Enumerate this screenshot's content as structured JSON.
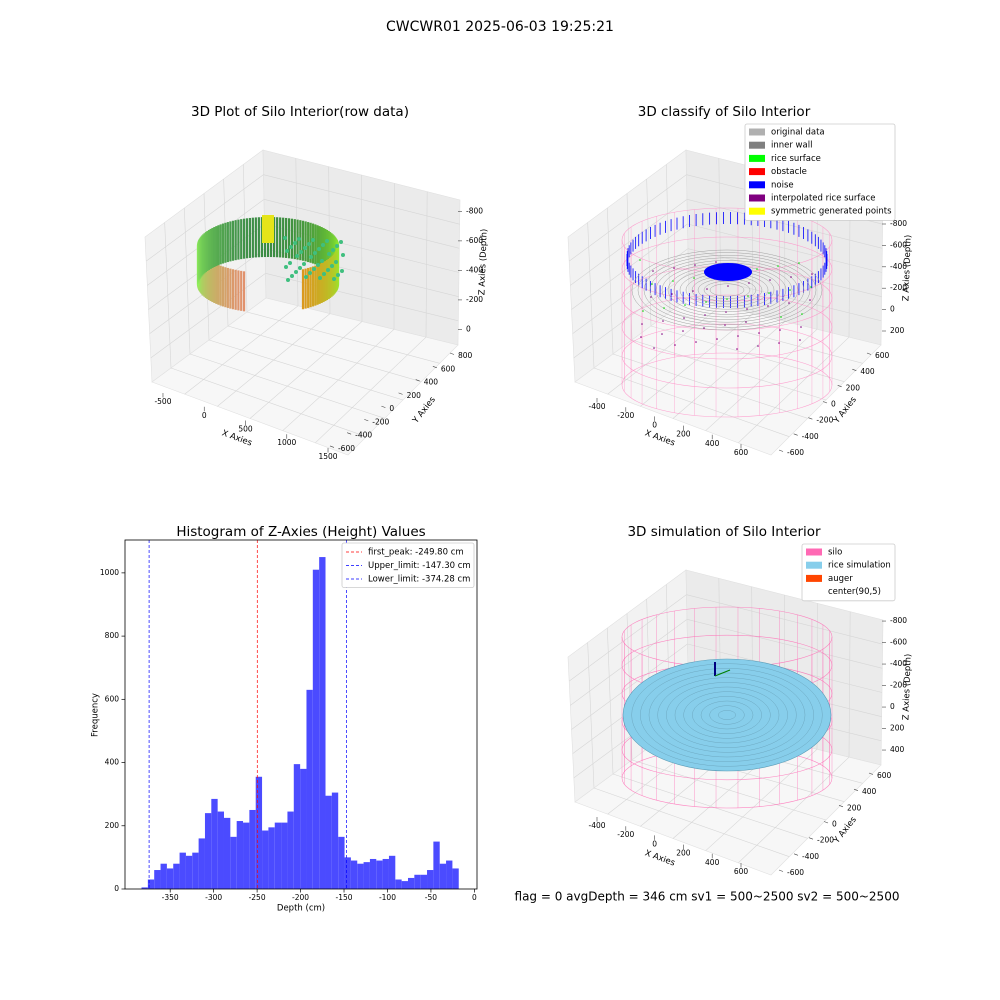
{
  "title": "CWCWR01 2025-06-03 19:25:21",
  "footer": "flag = 0     avgDepth = 346 cm  sv1 = 500~2500  sv2 = 500~2500",
  "chart_data": [
    {
      "type": "scatter3d",
      "title": "3D Plot of Silo Interior(row data)",
      "xlabel": "X Axies",
      "ylabel": "Y Axies",
      "zlabel": "Z Axies (Depth)",
      "xlim": [
        -650,
        1650
      ],
      "ylim": [
        -700,
        850
      ],
      "zlim": [
        -900,
        50
      ],
      "xticks": [
        -500,
        0,
        500,
        1000,
        1500
      ],
      "yticks": [
        -600,
        -400,
        -200,
        0,
        200,
        400,
        600,
        800
      ],
      "zticks": [
        0,
        -200,
        -400,
        -600,
        -800
      ]
    },
    {
      "type": "scatter3d",
      "title": "3D classify of Silo Interior",
      "xlabel": "X Axies",
      "ylabel": "Y Axies",
      "zlabel": "Z Axies (Depth)",
      "xlim": [
        -550,
        700
      ],
      "ylim": [
        -700,
        700
      ],
      "zlim": [
        -900,
        300
      ],
      "xticks": [
        -400,
        -200,
        0,
        200,
        400,
        600
      ],
      "yticks": [
        -600,
        -400,
        -200,
        0,
        200,
        400,
        600
      ],
      "zticks": [
        200,
        0,
        -200,
        -400,
        -600,
        -800
      ],
      "legend": [
        {
          "name": "original data",
          "color": "#b0b0b0"
        },
        {
          "name": "inner wall",
          "color": "#808080"
        },
        {
          "name": "rice surface",
          "color": "#00ff00"
        },
        {
          "name": "obstacle",
          "color": "#ff0000"
        },
        {
          "name": "noise",
          "color": "#0000ff"
        },
        {
          "name": "interpolated rice surface",
          "color": "#800080"
        },
        {
          "name": "symmetric generated points",
          "color": "#ffff00"
        }
      ]
    },
    {
      "type": "histogram",
      "title": "Histogram of Z-Axies (Height) Values",
      "xlabel": "Depth (cm)",
      "ylabel": "Frequency",
      "color": "#4b4bff",
      "bins": [
        -383.0,
        -375.7,
        -368.4,
        -361.1,
        -353.8,
        -346.5,
        -339.2,
        -331.9,
        -324.6,
        -317.3,
        -310.0,
        -302.7,
        -295.4,
        -288.1,
        -280.8,
        -273.5,
        -266.2,
        -258.9,
        -251.6,
        -244.3,
        -237.0,
        -229.7,
        -222.4,
        -215.1,
        -207.8,
        -200.5,
        -193.2,
        -185.9,
        -178.6,
        -171.3,
        -164.0,
        -156.7,
        -149.4,
        -142.1,
        -134.8,
        -127.5,
        -120.2,
        -112.9,
        -105.6,
        -98.3,
        -91.0,
        -83.7,
        -76.4,
        -69.1,
        -61.8,
        -54.5,
        -47.2,
        -39.9,
        -32.6,
        -25.3,
        -18.0
      ],
      "counts": [
        5,
        30,
        60,
        80,
        65,
        80,
        115,
        105,
        115,
        160,
        240,
        285,
        245,
        225,
        165,
        215,
        210,
        250,
        355,
        185,
        195,
        210,
        210,
        245,
        395,
        380,
        630,
        1010,
        1050,
        295,
        305,
        165,
        100,
        90,
        80,
        85,
        95,
        90,
        95,
        105,
        30,
        25,
        35,
        45,
        45,
        60,
        150,
        80,
        90,
        65
      ],
      "xlim": [
        -402,
        3
      ],
      "ylim": [
        0,
        1104
      ],
      "xticks": [
        -350,
        -300,
        -250,
        -200,
        -150,
        -100,
        -50,
        0
      ],
      "yticks": [
        0,
        200,
        400,
        600,
        800,
        1000
      ],
      "lines": [
        {
          "name": "first_peak: -249.80 cm",
          "value": -249.8,
          "color": "#ff0000"
        },
        {
          "name": "Upper_limit: -147.30 cm",
          "value": -147.3,
          "color": "#0000ff"
        },
        {
          "name": "Lower_limit: -374.28 cm",
          "value": -374.28,
          "color": "#0000ff"
        }
      ],
      "legend_position": "upper right"
    },
    {
      "type": "surface3d",
      "title": "3D simulation of Silo Interior",
      "xlabel": "X Axies",
      "ylabel": "Y Axies",
      "zlabel": "Z Axies (Depth)",
      "xlim": [
        -550,
        700
      ],
      "ylim": [
        -700,
        700
      ],
      "zlim": [
        -900,
        500
      ],
      "xticks": [
        -400,
        -200,
        0,
        200,
        400,
        600
      ],
      "yticks": [
        -600,
        -400,
        -200,
        0,
        200,
        400,
        600
      ],
      "zticks": [
        400,
        200,
        0,
        -200,
        -400,
        -600,
        -800
      ],
      "legend": [
        {
          "name": "silo",
          "color": "#ff69b4"
        },
        {
          "name": "rice simulation",
          "color": "#87ceeb"
        },
        {
          "name": "auger",
          "color": "#ff4500"
        },
        {
          "name": "center(90,5)",
          "color": "#ffffff"
        }
      ]
    }
  ]
}
